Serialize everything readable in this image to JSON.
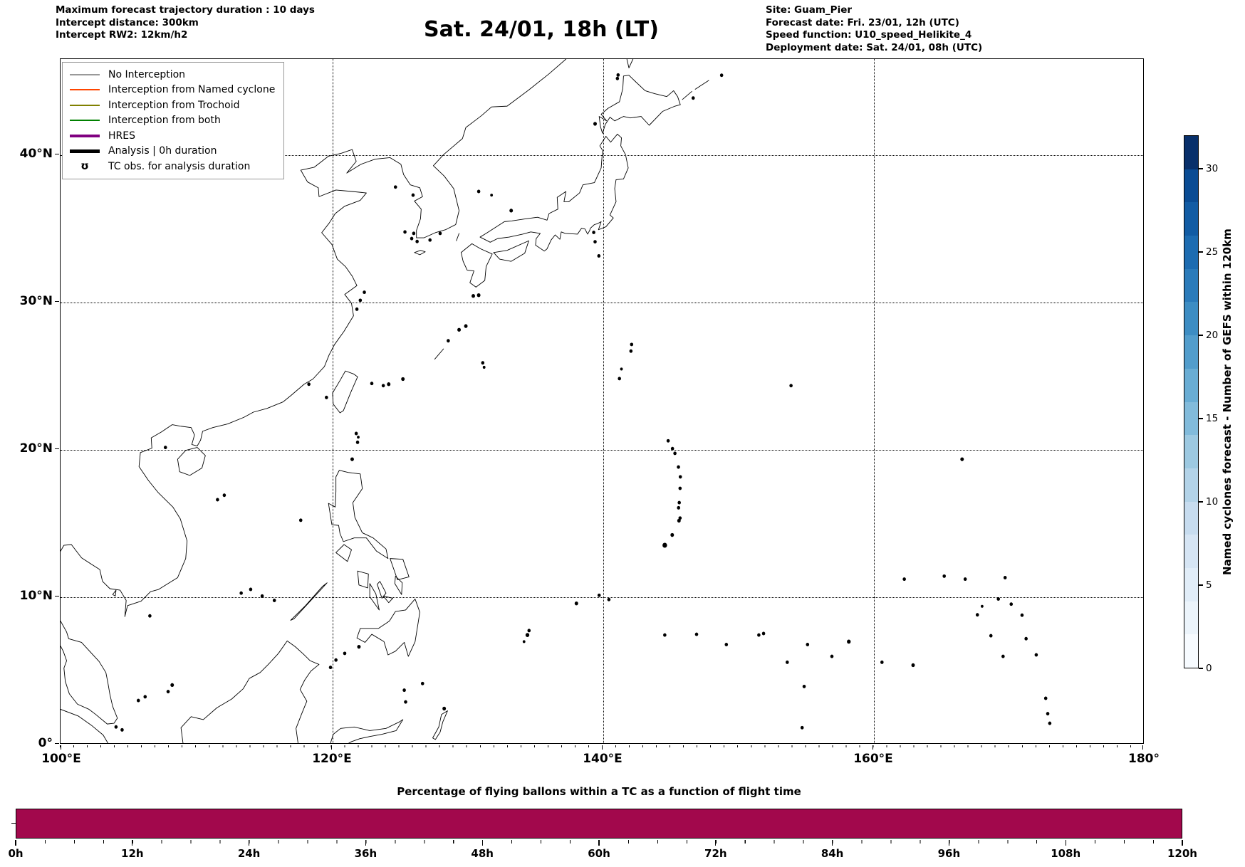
{
  "figure": {
    "top_left_lines": [
      "Maximum forecast trajectory duration : 10 days",
      "Intercept distance: 300km",
      "Intercept RW2: 12km/h2"
    ],
    "title": "Sat. 24/01, 18h (LT)",
    "top_right_lines": [
      "Site: Guam_Pier",
      "Forecast date: Fri. 23/01, 12h (UTC)",
      "Speed function: U10_speed_Helikite_4",
      "Deployment date: Sat. 24/01, 08h (UTC)"
    ]
  },
  "map": {
    "x_tick_labels": [
      "100°E",
      "120°E",
      "140°E",
      "160°E",
      "180°"
    ],
    "y_tick_labels": [
      "40°N",
      "30°N",
      "20°N",
      "10°N",
      "0°"
    ],
    "legend": {
      "items": [
        {
          "label": "No Interception",
          "color": "#999999",
          "style": "thin"
        },
        {
          "label": "Interception from Named cyclone",
          "color": "#ff4500",
          "style": "thin"
        },
        {
          "label": "Interception from Trochoid",
          "color": "#808000",
          "style": "thin"
        },
        {
          "label": "Interception from both",
          "color": "#008000",
          "style": "thin"
        },
        {
          "label": "HRES",
          "color": "#800080",
          "style": "thick"
        },
        {
          "label": "Analysis | 0h duration",
          "color": "#000000",
          "style": "thick"
        },
        {
          "label": "TC obs. for analysis duration",
          "symbol": "ʊ"
        }
      ]
    }
  },
  "colorbar": {
    "label": "Named cyclones forecast - Number of GEFS within 120km",
    "tick_values": [
      0,
      5,
      10,
      15,
      20,
      25,
      30
    ],
    "range": [
      0,
      32
    ],
    "band_colors": [
      "#f7fbff",
      "#ecf4fb",
      "#e1edf8",
      "#d6e5f4",
      "#c7dcef",
      "#b3d3e8",
      "#9dc9e1",
      "#82bbdb",
      "#69add4",
      "#529dcc",
      "#3d8dc3",
      "#2b7bba",
      "#1d6cb1",
      "#125ca4",
      "#0a4c94",
      "#08306b"
    ]
  },
  "chart_data": [
    {
      "type": "map",
      "title": "Sat. 24/01, 18h (LT)",
      "region": "Western North Pacific / East Asia coastlines",
      "lon_range": [
        100,
        180
      ],
      "lat_range": [
        0,
        46.5
      ],
      "lon_gridlines": [
        120,
        140,
        160
      ],
      "lat_gridlines": [
        10,
        20,
        30,
        40
      ],
      "grid": "dotted",
      "plotted_trajectories_visible": 0
    },
    {
      "type": "bar",
      "title": "Percentage of flying ballons within a TC as a function of flight time",
      "x_tick_labels": [
        "0h",
        "12h",
        "24h",
        "36h",
        "48h",
        "60h",
        "72h",
        "84h",
        "96h",
        "108h",
        "120h"
      ],
      "x_range_hours": [
        0,
        120
      ],
      "minor_tick_step_hours": 3,
      "value_percent_constant": 100,
      "bar_color": "#a2084c"
    }
  ]
}
